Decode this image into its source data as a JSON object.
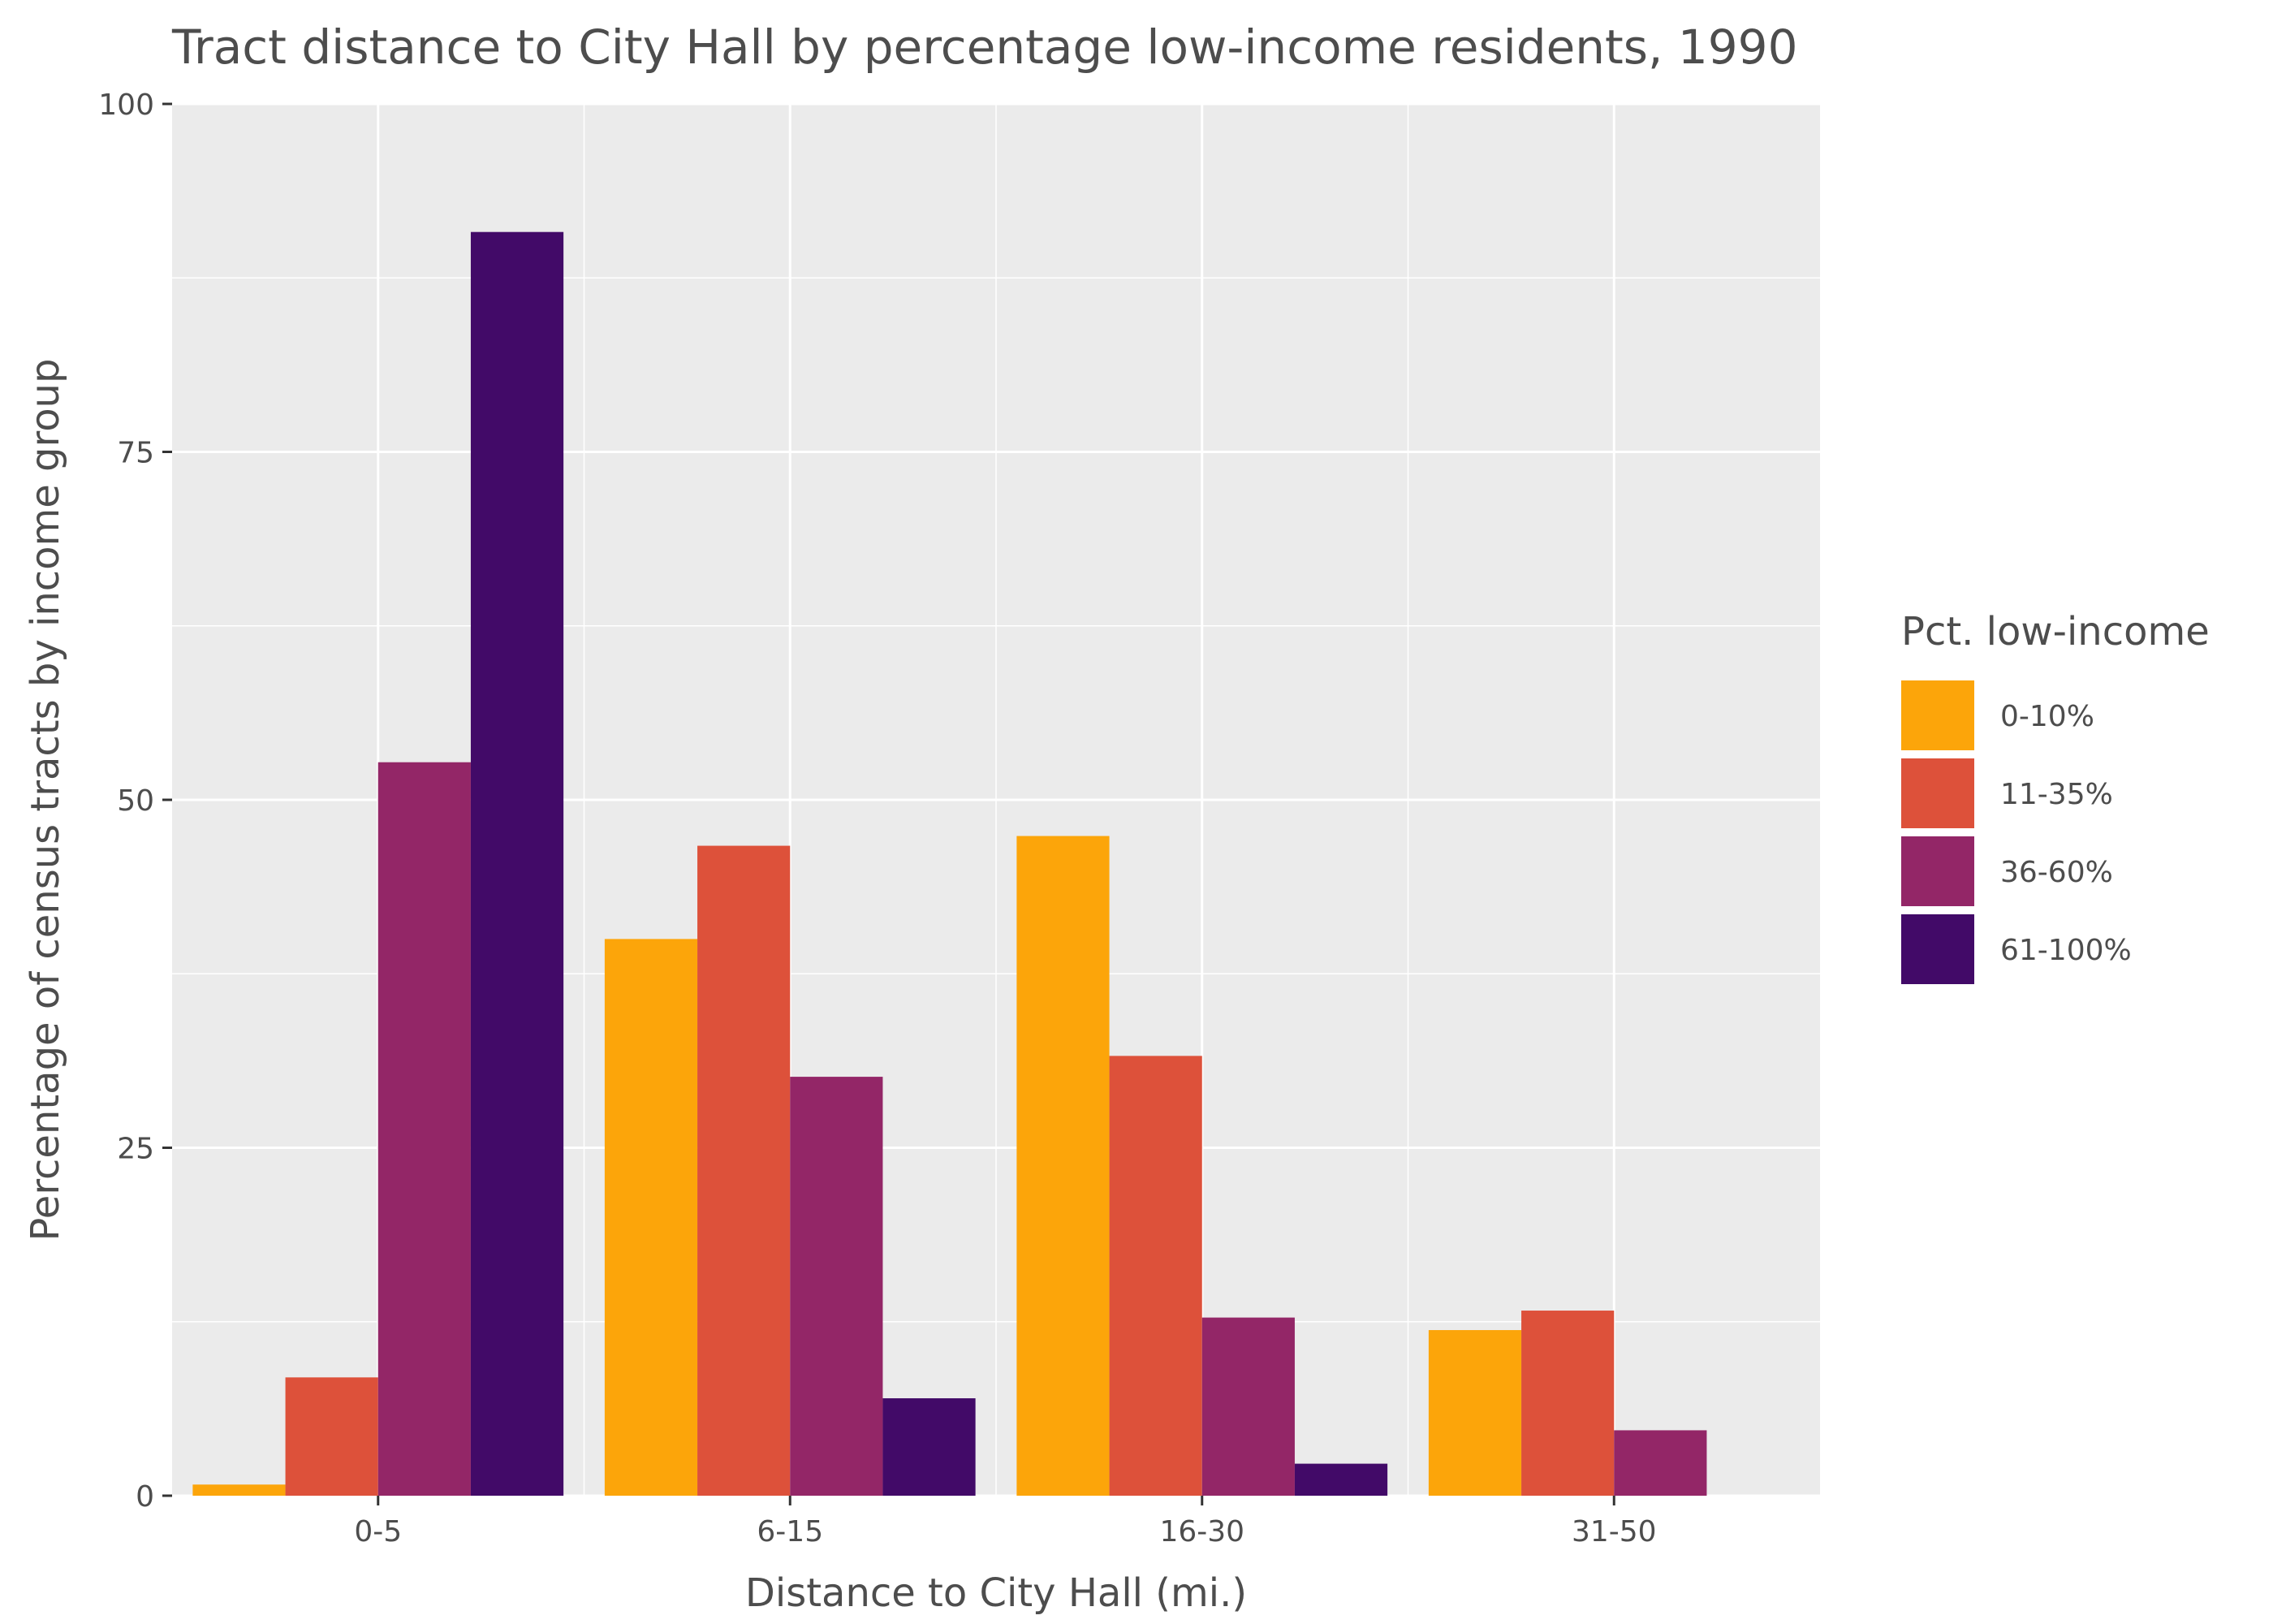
{
  "chart_data": {
    "type": "bar",
    "title": "Tract distance to City Hall by percentage low-income residents, 1990",
    "xlabel": "Distance to City Hall (mi.)",
    "ylabel": "Percentage of census tracts by income group",
    "categories": [
      "0-5",
      "6-15",
      "16-30",
      "31-50"
    ],
    "ylim": [
      0,
      100
    ],
    "yticks": [
      0,
      25,
      50,
      75,
      100
    ],
    "grid": true,
    "legend": {
      "title": "Pct. low-income",
      "position": "right"
    },
    "series": [
      {
        "name": "0-10%",
        "color": "#fca50a",
        "values": [
          0.8,
          40.0,
          47.4,
          11.9
        ]
      },
      {
        "name": "11-35%",
        "color": "#dd513a",
        "values": [
          8.5,
          46.7,
          31.6,
          13.3
        ]
      },
      {
        "name": "36-60%",
        "color": "#932667",
        "values": [
          52.7,
          30.1,
          12.8,
          4.7
        ]
      },
      {
        "name": "61-100%",
        "color": "#420a68",
        "values": [
          90.8,
          7.0,
          2.3,
          null
        ]
      }
    ],
    "colors": {
      "panel": "#ebebeb",
      "grid": "#ffffff",
      "text": "#4d4d4d",
      "tick": "#333333"
    }
  }
}
